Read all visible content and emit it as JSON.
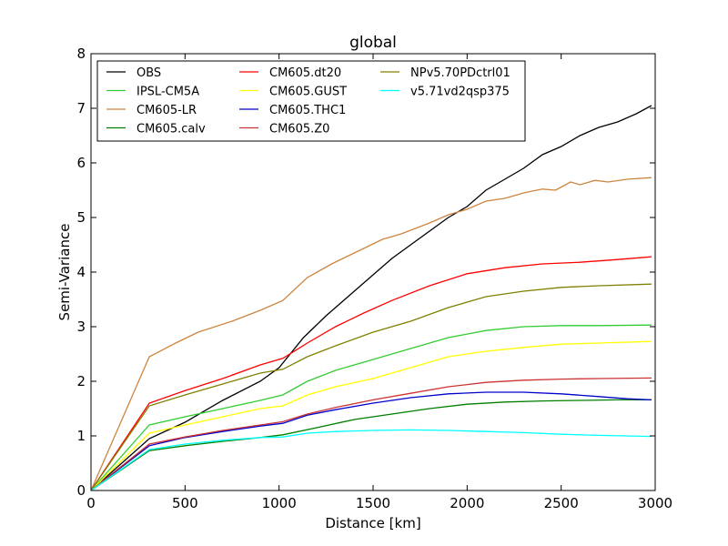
{
  "chart_data": {
    "type": "line",
    "title": "global",
    "xlabel": "Distance [km]",
    "ylabel": "Semi-Variance",
    "xlim": [
      0,
      3000
    ],
    "ylim": [
      0,
      8
    ],
    "xticks": [
      0,
      500,
      1000,
      1500,
      2000,
      2500,
      3000
    ],
    "yticks": [
      0,
      1,
      2,
      3,
      4,
      5,
      6,
      7,
      8
    ],
    "grid": false,
    "legend_position": "top-left",
    "legend_columns": 3,
    "series": [
      {
        "name": "OBS",
        "color": "#000000",
        "points": [
          [
            0,
            0
          ],
          [
            310,
            0.95
          ],
          [
            500,
            1.25
          ],
          [
            700,
            1.65
          ],
          [
            900,
            2.0
          ],
          [
            1000,
            2.25
          ],
          [
            1130,
            2.8
          ],
          [
            1250,
            3.2
          ],
          [
            1400,
            3.65
          ],
          [
            1500,
            3.95
          ],
          [
            1600,
            4.25
          ],
          [
            1700,
            4.5
          ],
          [
            1800,
            4.75
          ],
          [
            1900,
            5.0
          ],
          [
            2000,
            5.2
          ],
          [
            2100,
            5.5
          ],
          [
            2200,
            5.7
          ],
          [
            2300,
            5.9
          ],
          [
            2400,
            6.15
          ],
          [
            2500,
            6.3
          ],
          [
            2600,
            6.5
          ],
          [
            2700,
            6.65
          ],
          [
            2800,
            6.75
          ],
          [
            2900,
            6.9
          ],
          [
            2980,
            7.05
          ]
        ]
      },
      {
        "name": "IPSL-CM5A",
        "color": "#33cc33",
        "points": [
          [
            0,
            0
          ],
          [
            310,
            1.2
          ],
          [
            500,
            1.35
          ],
          [
            700,
            1.5
          ],
          [
            900,
            1.65
          ],
          [
            1020,
            1.75
          ],
          [
            1150,
            2.0
          ],
          [
            1300,
            2.2
          ],
          [
            1500,
            2.4
          ],
          [
            1700,
            2.6
          ],
          [
            1900,
            2.8
          ],
          [
            2100,
            2.93
          ],
          [
            2300,
            3.0
          ],
          [
            2500,
            3.02
          ],
          [
            2700,
            3.02
          ],
          [
            2980,
            3.03
          ]
        ]
      },
      {
        "name": "CM605-LR",
        "color": "#cd853f",
        "points": [
          [
            0,
            0
          ],
          [
            310,
            2.45
          ],
          [
            450,
            2.7
          ],
          [
            570,
            2.9
          ],
          [
            750,
            3.1
          ],
          [
            900,
            3.3
          ],
          [
            1020,
            3.48
          ],
          [
            1150,
            3.9
          ],
          [
            1280,
            4.15
          ],
          [
            1400,
            4.35
          ],
          [
            1550,
            4.6
          ],
          [
            1650,
            4.7
          ],
          [
            1800,
            4.9
          ],
          [
            1900,
            5.05
          ],
          [
            2000,
            5.15
          ],
          [
            2100,
            5.3
          ],
          [
            2200,
            5.35
          ],
          [
            2300,
            5.45
          ],
          [
            2400,
            5.52
          ],
          [
            2470,
            5.5
          ],
          [
            2550,
            5.65
          ],
          [
            2600,
            5.6
          ],
          [
            2680,
            5.68
          ],
          [
            2750,
            5.65
          ],
          [
            2850,
            5.7
          ],
          [
            2980,
            5.73
          ]
        ]
      },
      {
        "name": "CM605.calv",
        "color": "#007f00",
        "points": [
          [
            0,
            0
          ],
          [
            310,
            0.73
          ],
          [
            500,
            0.82
          ],
          [
            700,
            0.9
          ],
          [
            900,
            0.97
          ],
          [
            1020,
            1.02
          ],
          [
            1200,
            1.15
          ],
          [
            1400,
            1.3
          ],
          [
            1600,
            1.4
          ],
          [
            1800,
            1.5
          ],
          [
            2000,
            1.58
          ],
          [
            2200,
            1.62
          ],
          [
            2400,
            1.64
          ],
          [
            2600,
            1.65
          ],
          [
            2800,
            1.66
          ],
          [
            2980,
            1.66
          ]
        ]
      },
      {
        "name": "CM605.dt20",
        "color": "#ff0000",
        "points": [
          [
            0,
            0
          ],
          [
            310,
            1.6
          ],
          [
            500,
            1.83
          ],
          [
            700,
            2.05
          ],
          [
            900,
            2.3
          ],
          [
            1020,
            2.42
          ],
          [
            1150,
            2.7
          ],
          [
            1300,
            3.0
          ],
          [
            1450,
            3.25
          ],
          [
            1600,
            3.48
          ],
          [
            1800,
            3.75
          ],
          [
            2000,
            3.97
          ],
          [
            2200,
            4.08
          ],
          [
            2400,
            4.15
          ],
          [
            2600,
            4.18
          ],
          [
            2800,
            4.23
          ],
          [
            2980,
            4.28
          ]
        ]
      },
      {
        "name": "CM605.GUST",
        "color": "#ffff00",
        "points": [
          [
            0,
            0
          ],
          [
            310,
            1.05
          ],
          [
            500,
            1.2
          ],
          [
            700,
            1.35
          ],
          [
            900,
            1.5
          ],
          [
            1020,
            1.55
          ],
          [
            1150,
            1.75
          ],
          [
            1300,
            1.9
          ],
          [
            1500,
            2.05
          ],
          [
            1700,
            2.25
          ],
          [
            1900,
            2.45
          ],
          [
            2100,
            2.55
          ],
          [
            2300,
            2.62
          ],
          [
            2500,
            2.68
          ],
          [
            2700,
            2.7
          ],
          [
            2980,
            2.73
          ]
        ]
      },
      {
        "name": "CM605.THC1",
        "color": "#0000cc",
        "points": [
          [
            0,
            0
          ],
          [
            310,
            0.82
          ],
          [
            500,
            0.97
          ],
          [
            700,
            1.08
          ],
          [
            900,
            1.18
          ],
          [
            1020,
            1.23
          ],
          [
            1150,
            1.38
          ],
          [
            1300,
            1.48
          ],
          [
            1500,
            1.6
          ],
          [
            1700,
            1.7
          ],
          [
            1900,
            1.77
          ],
          [
            2100,
            1.8
          ],
          [
            2300,
            1.8
          ],
          [
            2500,
            1.77
          ],
          [
            2700,
            1.72
          ],
          [
            2850,
            1.68
          ],
          [
            2980,
            1.66
          ]
        ]
      },
      {
        "name": "CM605.Z0",
        "color": "#cc3333",
        "points": [
          [
            0,
            0
          ],
          [
            310,
            0.85
          ],
          [
            500,
            0.98
          ],
          [
            700,
            1.1
          ],
          [
            900,
            1.2
          ],
          [
            1020,
            1.26
          ],
          [
            1150,
            1.4
          ],
          [
            1300,
            1.52
          ],
          [
            1500,
            1.66
          ],
          [
            1700,
            1.78
          ],
          [
            1900,
            1.9
          ],
          [
            2100,
            1.98
          ],
          [
            2300,
            2.02
          ],
          [
            2500,
            2.04
          ],
          [
            2700,
            2.05
          ],
          [
            2980,
            2.06
          ]
        ]
      },
      {
        "name": "NPv5.70PDctrl01",
        "color": "#808000",
        "points": [
          [
            0,
            0
          ],
          [
            310,
            1.55
          ],
          [
            500,
            1.75
          ],
          [
            700,
            1.95
          ],
          [
            900,
            2.15
          ],
          [
            1020,
            2.22
          ],
          [
            1150,
            2.45
          ],
          [
            1300,
            2.65
          ],
          [
            1500,
            2.9
          ],
          [
            1700,
            3.1
          ],
          [
            1900,
            3.35
          ],
          [
            2100,
            3.55
          ],
          [
            2300,
            3.65
          ],
          [
            2500,
            3.72
          ],
          [
            2700,
            3.75
          ],
          [
            2980,
            3.78
          ]
        ]
      },
      {
        "name": "v5.71vd2qsp375",
        "color": "#00ffff",
        "points": [
          [
            0,
            0
          ],
          [
            310,
            0.75
          ],
          [
            500,
            0.85
          ],
          [
            700,
            0.92
          ],
          [
            900,
            0.97
          ],
          [
            1020,
            0.98
          ],
          [
            1150,
            1.05
          ],
          [
            1300,
            1.08
          ],
          [
            1500,
            1.1
          ],
          [
            1700,
            1.11
          ],
          [
            1900,
            1.1
          ],
          [
            2100,
            1.08
          ],
          [
            2300,
            1.06
          ],
          [
            2500,
            1.03
          ],
          [
            2700,
            1.01
          ],
          [
            2980,
            0.99
          ]
        ]
      }
    ]
  }
}
